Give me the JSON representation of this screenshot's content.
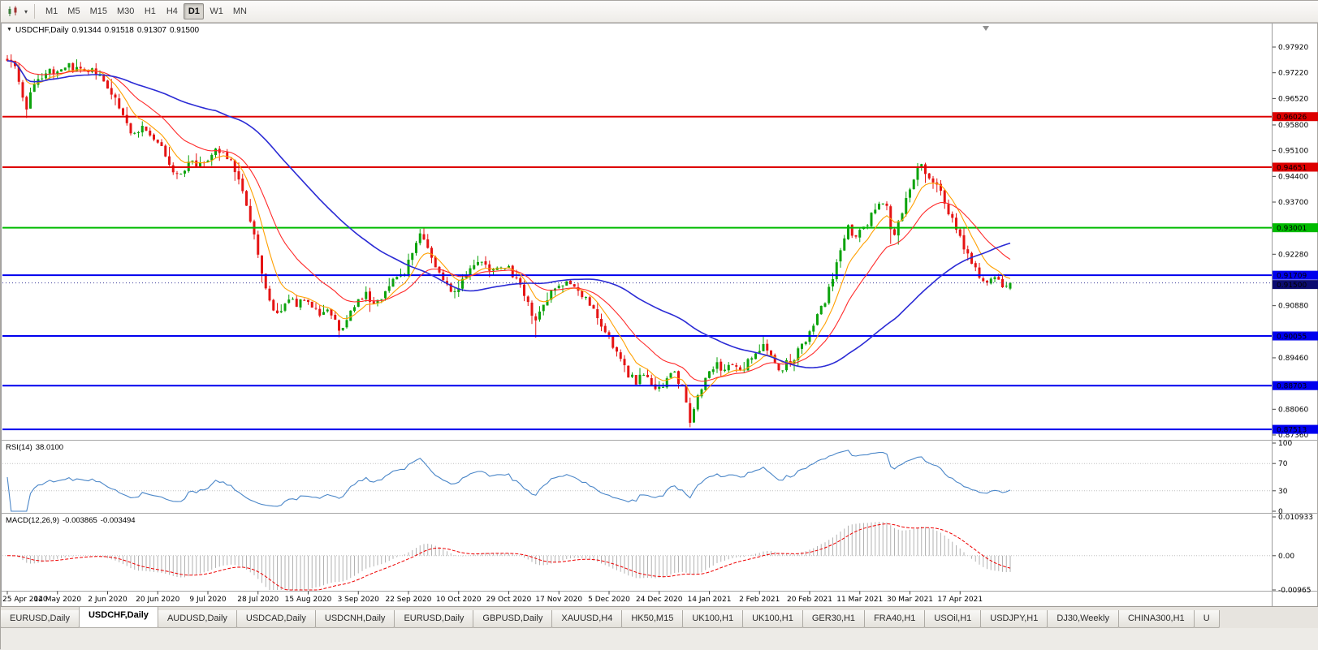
{
  "toolbar": {
    "timeframes": [
      "M1",
      "M5",
      "M15",
      "M30",
      "H1",
      "H4",
      "D1",
      "W1",
      "MN"
    ],
    "active_timeframe": "D1"
  },
  "chart_header": {
    "symbol": "USDCHF,Daily",
    "open": "0.91344",
    "high": "0.91518",
    "low": "0.91307",
    "close": "0.91500"
  },
  "main_chart": {
    "y_axis_labels": [
      "0.97920",
      "0.97220",
      "0.96520",
      "0.95800",
      "0.95100",
      "0.94400",
      "0.93700",
      "0.92280",
      "0.90880",
      "0.89460",
      "0.88060",
      "0.87360"
    ],
    "levels": [
      {
        "label": "0.96026",
        "value": 0.96026,
        "color": "#dd0000",
        "kind": "resistance"
      },
      {
        "label": "0.94651",
        "value": 0.94651,
        "color": "#dd0000",
        "kind": "resistance"
      },
      {
        "label": "0.93001",
        "value": 0.93001,
        "color": "#00bb00",
        "kind": "pivot"
      },
      {
        "label": "0.91709",
        "value": 0.91709,
        "color": "#0000ee",
        "kind": "support"
      },
      {
        "label": "0.90055",
        "value": 0.90055,
        "color": "#0000ee",
        "kind": "support"
      },
      {
        "label": "0.88703",
        "value": 0.88703,
        "color": "#0000ee",
        "kind": "support"
      },
      {
        "label": "0.87513",
        "value": 0.87513,
        "color": "#0000ee",
        "kind": "support"
      }
    ],
    "current_price": {
      "label": "0.91500",
      "value": 0.915,
      "color": "#0b0b70"
    }
  },
  "x_axis": {
    "labels": [
      "25 Apr 2020",
      "14 May 2020",
      "2 Jun 2020",
      "20 Jun 2020",
      "9 Jul 2020",
      "28 Jul 2020",
      "15 Aug 2020",
      "3 Sep 2020",
      "22 Sep 2020",
      "10 Oct 2020",
      "29 Oct 2020",
      "17 Nov 2020",
      "5 Dec 2020",
      "24 Dec 2020",
      "14 Jan 2021",
      "2 Feb 2021",
      "20 Feb 2021",
      "11 Mar 2021",
      "30 Mar 2021",
      "17 Apr 2021"
    ],
    "bars_per_label": 13
  },
  "rsi_panel": {
    "name": "RSI(14)",
    "value": "38.0100",
    "axis_labels": [
      "100",
      "70",
      "30",
      "0"
    ],
    "line_color": "#4a86c8",
    "guide_levels": [
      70,
      30
    ]
  },
  "macd_panel": {
    "name": "MACD(12,26,9)",
    "macd_value": "-0.003865",
    "signal_value": "-0.003494",
    "axis_labels": [
      "0.010933",
      "0.00",
      "-0.00965"
    ],
    "histogram_color": "#b2b2b2",
    "signal_color": "#ee0000"
  },
  "tabs": {
    "items": [
      "EURUSD,Daily",
      "USDCHF,Daily",
      "AUDUSD,Daily",
      "USDCAD,Daily",
      "USDCNH,Daily",
      "EURUSD,Daily",
      "GBPUSD,Daily",
      "XAUUSD,H4",
      "HK50,M15",
      "UK100,H1",
      "UK100,H1",
      "GER30,H1",
      "FRA40,H1",
      "USOil,H1",
      "USDJPY,H1",
      "DJ30,Weekly",
      "CHINA300,H1",
      "U"
    ],
    "active_index": 1
  },
  "chart_data": {
    "type": "candlestick",
    "symbol": "USDCHF",
    "timeframe": "Daily",
    "candle_count": 261,
    "colors": {
      "bull": "#0ca30c",
      "bear": "#e51414",
      "ma_fast": "#ffa000",
      "ma_mid": "#ff2a2a",
      "ma_slow": "#2b2bd5"
    },
    "moving_averages": [
      {
        "name": "fast",
        "type": "ema",
        "period": 8
      },
      {
        "name": "mid",
        "type": "ema",
        "period": 20
      },
      {
        "name": "slow",
        "type": "sma",
        "period": 55
      }
    ],
    "last_candle": {
      "open": 0.91344,
      "high": 0.91518,
      "low": 0.91307,
      "close": 0.915
    },
    "price_axis_range": [
      0.8725,
      0.9841
    ],
    "waypoints": [
      [
        0,
        0.9755
      ],
      [
        2,
        0.9737
      ],
      [
        4,
        0.9662
      ],
      [
        5,
        0.9628
      ],
      [
        7,
        0.9688
      ],
      [
        10,
        0.9728
      ],
      [
        13,
        0.9722
      ],
      [
        16,
        0.9738
      ],
      [
        19,
        0.9725
      ],
      [
        22,
        0.9736
      ],
      [
        25,
        0.9706
      ],
      [
        28,
        0.965
      ],
      [
        31,
        0.9585
      ],
      [
        33,
        0.9548
      ],
      [
        35,
        0.9572
      ],
      [
        38,
        0.9542
      ],
      [
        41,
        0.9502
      ],
      [
        43,
        0.9458
      ],
      [
        45,
        0.9442
      ],
      [
        47,
        0.9478
      ],
      [
        50,
        0.9468
      ],
      [
        53,
        0.9505
      ],
      [
        55,
        0.9512
      ],
      [
        57,
        0.9496
      ],
      [
        59,
        0.9462
      ],
      [
        61,
        0.941
      ],
      [
        63,
        0.932
      ],
      [
        65,
        0.9235
      ],
      [
        67,
        0.9135
      ],
      [
        69,
        0.9068
      ],
      [
        71,
        0.9075
      ],
      [
        73,
        0.9108
      ],
      [
        75,
        0.9088
      ],
      [
        77,
        0.9112
      ],
      [
        79,
        0.9085
      ],
      [
        81,
        0.9062
      ],
      [
        83,
        0.9078
      ],
      [
        85,
        0.904
      ],
      [
        87,
        0.9018
      ],
      [
        89,
        0.9072
      ],
      [
        91,
        0.9108
      ],
      [
        93,
        0.9122
      ],
      [
        95,
        0.9092
      ],
      [
        97,
        0.9112
      ],
      [
        99,
        0.914
      ],
      [
        101,
        0.9162
      ],
      [
        103,
        0.918
      ],
      [
        105,
        0.9225
      ],
      [
        107,
        0.9288
      ],
      [
        109,
        0.9252
      ],
      [
        111,
        0.9185
      ],
      [
        113,
        0.9155
      ],
      [
        115,
        0.9128
      ],
      [
        117,
        0.9138
      ],
      [
        119,
        0.9168
      ],
      [
        121,
        0.9198
      ],
      [
        123,
        0.9205
      ],
      [
        125,
        0.9178
      ],
      [
        127,
        0.9188
      ],
      [
        129,
        0.9198
      ],
      [
        131,
        0.9172
      ],
      [
        133,
        0.915
      ],
      [
        135,
        0.9095
      ],
      [
        137,
        0.9042
      ],
      [
        139,
        0.9088
      ],
      [
        141,
        0.9122
      ],
      [
        143,
        0.9138
      ],
      [
        145,
        0.9155
      ],
      [
        147,
        0.9138
      ],
      [
        149,
        0.912
      ],
      [
        151,
        0.9098
      ],
      [
        153,
        0.9058
      ],
      [
        155,
        0.9012
      ],
      [
        157,
        0.8978
      ],
      [
        159,
        0.8942
      ],
      [
        161,
        0.8902
      ],
      [
        163,
        0.8882
      ],
      [
        165,
        0.8902
      ],
      [
        167,
        0.8872
      ],
      [
        169,
        0.8856
      ],
      [
        171,
        0.8892
      ],
      [
        173,
        0.8902
      ],
      [
        175,
        0.8862
      ],
      [
        176,
        0.8818
      ],
      [
        177,
        0.8778
      ],
      [
        178,
        0.8808
      ],
      [
        180,
        0.8862
      ],
      [
        182,
        0.8902
      ],
      [
        184,
        0.8926
      ],
      [
        186,
        0.8906
      ],
      [
        188,
        0.8936
      ],
      [
        190,
        0.8916
      ],
      [
        192,
        0.8932
      ],
      [
        194,
        0.8952
      ],
      [
        196,
        0.8992
      ],
      [
        198,
        0.8956
      ],
      [
        200,
        0.8912
      ],
      [
        202,
        0.8932
      ],
      [
        204,
        0.8948
      ],
      [
        206,
        0.8982
      ],
      [
        208,
        0.9012
      ],
      [
        210,
        0.9072
      ],
      [
        212,
        0.9102
      ],
      [
        214,
        0.9162
      ],
      [
        216,
        0.9238
      ],
      [
        218,
        0.9298
      ],
      [
        220,
        0.9272
      ],
      [
        222,
        0.9302
      ],
      [
        224,
        0.9332
      ],
      [
        226,
        0.9362
      ],
      [
        228,
        0.9368
      ],
      [
        229,
        0.9302
      ],
      [
        230,
        0.9272
      ],
      [
        232,
        0.9348
      ],
      [
        234,
        0.9412
      ],
      [
        236,
        0.9458
      ],
      [
        237,
        0.9468
      ],
      [
        238,
        0.9442
      ],
      [
        240,
        0.9432
      ],
      [
        242,
        0.9392
      ],
      [
        244,
        0.9342
      ],
      [
        246,
        0.9302
      ],
      [
        248,
        0.9252
      ],
      [
        250,
        0.9202
      ],
      [
        252,
        0.9168
      ],
      [
        254,
        0.9148
      ],
      [
        256,
        0.9168
      ],
      [
        258,
        0.9142
      ],
      [
        260,
        0.915
      ]
    ],
    "forced_wicks": [
      [
        5,
        "l",
        0.9599
      ],
      [
        86,
        "l",
        0.9002
      ],
      [
        107,
        "h",
        0.9297
      ],
      [
        137,
        "l",
        0.9001
      ],
      [
        177,
        "l",
        0.8757
      ],
      [
        196,
        "h",
        0.9004
      ],
      [
        229,
        "l",
        0.9256
      ],
      [
        236,
        "h",
        0.9476
      ]
    ],
    "rsi": {
      "period": 14,
      "end_value": 38.01
    },
    "macd": {
      "fast": 12,
      "slow": 26,
      "signal": 9,
      "range": [
        -0.00965,
        0.010933
      ]
    }
  }
}
